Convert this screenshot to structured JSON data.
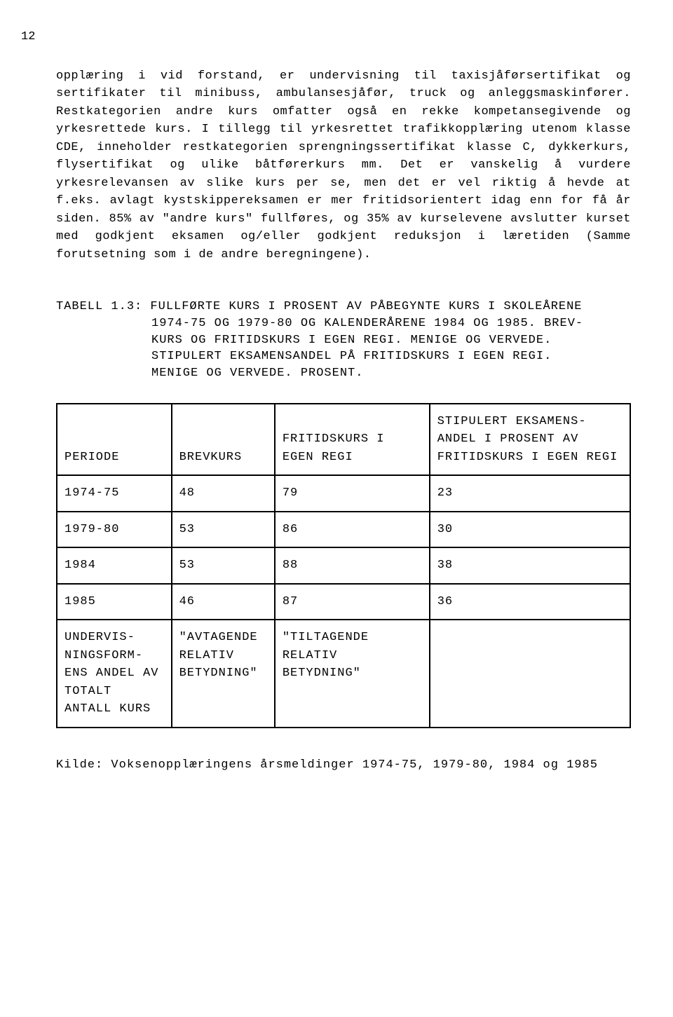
{
  "page_number": "12",
  "paragraph1": "opplæring i vid forstand, er undervisning til taxisjåførsertifikat og sertifikater til minibuss, ambulansesjåfør, truck og anleggsmaskinfører. Restkategorien andre kurs omfatter også en rekke kompetansegivende og yrkesrettede kurs. I tillegg til yrkesrettet trafikkopplæring utenom klasse CDE, inneholder restkategorien sprengningssertifikat klasse C, dykkerkurs, flysertifikat og ulike båtførerkurs mm. Det er vanskelig å vurdere yrkesrelevansen av slike kurs per se, men det er vel riktig å hevde at f.eks. avlagt kystskippereksamen er mer fritidsorientert idag enn for få år siden. 85% av \"andre kurs\" fullføres, og 35% av kurselevene avslutter kurset med godkjent eksamen og/eller godkjent reduksjon i læretiden (Samme forutsetning som i de andre beregningene).",
  "table_caption": {
    "label": "TABELL 1.3:",
    "line1": "FULLFØRTE KURS I PROSENT AV PÅBEGYNTE KURS I SKOLEÅRENE",
    "line2": "1974-75 OG 1979-80 OG KALENDERÅRENE 1984 OG 1985. BREV-",
    "line3": "KURS OG FRITIDSKURS I EGEN REGI. MENIGE OG VERVEDE.",
    "line4": "STIPULERT EKSAMENSANDEL PÅ FRITIDSKURS I EGEN REGI.",
    "line5": "MENIGE OG VERVEDE. PROSENT."
  },
  "table": {
    "columns": {
      "c0": "PERIODE",
      "c1": "BREVKURS",
      "c2": "FRITIDSKURS I EGEN REGI",
      "c3": "STIPULERT EKSAMENS-ANDEL I PROSENT AV FRITIDSKURS I EGEN REGI"
    },
    "rows": [
      {
        "c0": "1974-75",
        "c1": "48",
        "c2": "79",
        "c3": "23"
      },
      {
        "c0": "1979-80",
        "c1": "53",
        "c2": "86",
        "c3": "30"
      },
      {
        "c0": "1984",
        "c1": "53",
        "c2": "88",
        "c3": "38"
      },
      {
        "c0": "1985",
        "c1": "46",
        "c2": "87",
        "c3": "36"
      }
    ],
    "footer": {
      "c0": "UNDERVIS-NINGSFORM-ENS ANDEL AV TOTALT ANTALL KURS",
      "c1": "\"AVTAGENDE RELATIV BETYDNING\"",
      "c2": "\"TILTAGENDE RELATIV BETYDNING\"",
      "c3": ""
    }
  },
  "source": "Kilde: Voksenopplæringens årsmeldinger 1974-75, 1979-80, 1984 og 1985"
}
